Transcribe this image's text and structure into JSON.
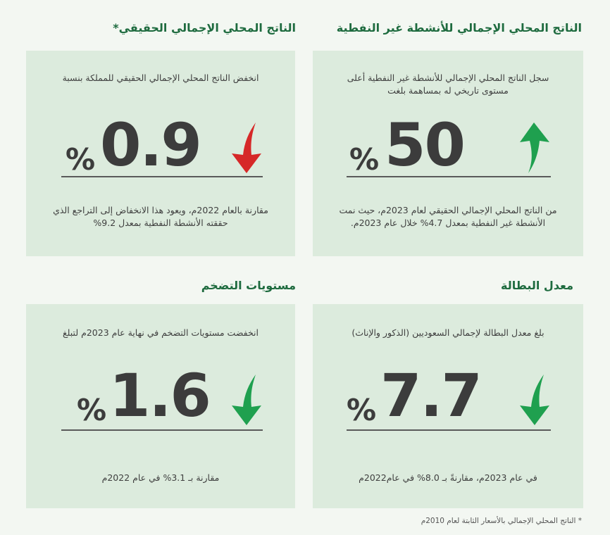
{
  "sections": {
    "non_oil_gdp": {
      "heading": "الناتج المحلي الإجمالي للأنشطة غير النفطية",
      "intro": "سجل الناتج المحلي الإجمالي للأنشطة غير النفطية أعلى مستوى تاريخي له بمساهمة بلغت",
      "value": "50",
      "unit": "%",
      "trend": "up",
      "note": "من الناتج المحلي الإجمالي الحقيقي لعام 2023م، حيث نمت الأنشطة غير النفطية بمعدل 4.7% خلال عام 2023م."
    },
    "real_gdp": {
      "heading": "الناتج المحلي الإجمالي الحقيقي*",
      "intro": "انخفض الناتج المحلي الإجمالي الحقيقي للمملكة بنسبة",
      "value": "0.9",
      "unit": "%",
      "trend": "down",
      "note": "مقارنة بالعام 2022م، ويعود هذا الانخفاض إلى التراجع الذي حققته الأنشطة النفطية بمعدل 9.2%"
    },
    "unemployment": {
      "heading": "معدل البطالة",
      "intro": "بلغ معدل البطالة لإجمالي السعوديين (الذكور والإناث)",
      "value": "7.7",
      "unit": "%",
      "trend": "down",
      "note": "في عام 2023م، مقارنةً بـ 8.0% في عام2022م"
    },
    "inflation": {
      "heading": "مستويات التضخم",
      "intro": "انخفضت مستويات التضخم في نهاية عام 2023م لتبلغ",
      "value": "1.6",
      "unit": "%",
      "trend": "down",
      "note": "مقارنة بـ 3.1% في عام 2022م"
    }
  },
  "footnote": "* الناتج المحلي الإجمالي بالأسعار الثابتة لعام 2010م",
  "colors": {
    "heading": "#1e6b3f",
    "card": "#dcebdd",
    "arrow_up": "#1fa04f",
    "arrow_down_green": "#1fa04f",
    "arrow_down_red": "#d62828"
  }
}
